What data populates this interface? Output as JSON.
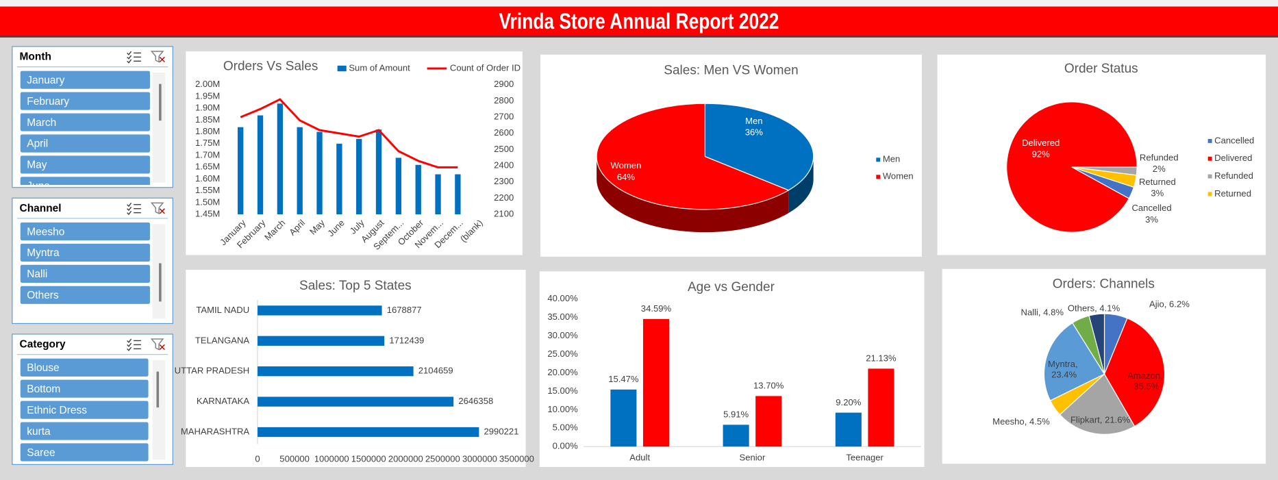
{
  "header": {
    "title": "Vrinda Store Annual Report 2022"
  },
  "slicers": [
    {
      "title": "Month",
      "items": [
        "January",
        "February",
        "March",
        "April",
        "May",
        "June"
      ]
    },
    {
      "title": "Channel",
      "items": [
        "Meesho",
        "Myntra",
        "Nalli",
        "Others"
      ]
    },
    {
      "title": "Category",
      "items": [
        "Blouse",
        "Bottom",
        "Ethnic Dress",
        "kurta",
        "Saree"
      ]
    }
  ],
  "chart_data": [
    {
      "type": "combo",
      "title": "Orders Vs Sales",
      "categories": [
        "January",
        "February",
        "March",
        "April",
        "May",
        "June",
        "July",
        "August",
        "Septem...",
        "October",
        "Novem...",
        "Decem...",
        "(blank)"
      ],
      "series": [
        {
          "name": "Sum of Amount",
          "type": "bar",
          "color": "#0070c0",
          "values": [
            1820000,
            1870000,
            1920000,
            1820000,
            1800000,
            1750000,
            1770000,
            1810000,
            1690000,
            1660000,
            1620000,
            1620000,
            null
          ]
        },
        {
          "name": "Count of Order ID",
          "type": "line",
          "axis": "y2",
          "color": "#ff0000",
          "values": [
            2700,
            2750,
            2810,
            2680,
            2620,
            2600,
            2580,
            2620,
            2490,
            2430,
            2390,
            2390,
            null
          ]
        }
      ],
      "ylim": [
        1450000,
        2000000
      ],
      "yticks": [
        {
          "value": 1450000,
          "label": "1.45M"
        },
        {
          "value": 1500000,
          "label": "1.50M"
        },
        {
          "value": 1550000,
          "label": "1.55M"
        },
        {
          "value": 1600000,
          "label": "1.60M"
        },
        {
          "value": 1650000,
          "label": "1.65M"
        },
        {
          "value": 1700000,
          "label": "1.70M"
        },
        {
          "value": 1750000,
          "label": "1.75M"
        },
        {
          "value": 1800000,
          "label": "1.80M"
        },
        {
          "value": 1850000,
          "label": "1.85M"
        },
        {
          "value": 1900000,
          "label": "1.90M"
        },
        {
          "value": 1950000,
          "label": "1.95M"
        },
        {
          "value": 2000000,
          "label": "2.00M"
        }
      ],
      "y2lim": [
        2100,
        2900
      ],
      "y2ticks": [
        2100,
        2200,
        2300,
        2400,
        2500,
        2600,
        2700,
        2800,
        2900
      ],
      "legend": "top"
    },
    {
      "type": "pie",
      "three_d": true,
      "title": "Sales: Men VS Women",
      "categories": [
        "Men",
        "Women"
      ],
      "values": [
        36,
        64
      ],
      "value_labels": [
        "36%",
        "64%"
      ],
      "colors": [
        "#0070c0",
        "#ff0000"
      ],
      "legend": "right"
    },
    {
      "type": "pie",
      "title": "Order Status",
      "categories": [
        "Cancelled",
        "Delivered",
        "Refunded",
        "Returned"
      ],
      "values": [
        3,
        92,
        2,
        3
      ],
      "value_labels": [
        "3%",
        "92%",
        "2%",
        "3%"
      ],
      "colors": [
        "#4472c4",
        "#ff0000",
        "#a5a5a5",
        "#ffc000"
      ],
      "legend": "right"
    },
    {
      "type": "hbar",
      "title": "Sales: Top 5 States",
      "categories": [
        "TAMIL NADU",
        "TELANGANA",
        "UTTAR PRADESH",
        "KARNATAKA",
        "MAHARASHTRA"
      ],
      "values": [
        1678877,
        1712439,
        2104659,
        2646358,
        2990221
      ],
      "color": "#0070c0",
      "xlim": [
        0,
        3500000
      ],
      "xticks": [
        0,
        500000,
        1000000,
        1500000,
        2000000,
        2500000,
        3000000,
        3500000
      ]
    },
    {
      "type": "bar",
      "title": "Age vs Gender",
      "categories": [
        "Adult",
        "Senior",
        "Teenager"
      ],
      "series": [
        {
          "color": "#0070c0",
          "values": [
            15.47,
            5.91,
            9.2
          ],
          "value_labels": [
            "15.47%",
            "5.91%",
            "9.20%"
          ]
        },
        {
          "color": "#ff0000",
          "values": [
            34.59,
            13.7,
            21.13
          ],
          "value_labels": [
            "34.59%",
            "13.70%",
            "21.13%"
          ]
        }
      ],
      "ylim": [
        0,
        40
      ],
      "yticks": [
        {
          "value": 0,
          "label": "0.00%"
        },
        {
          "value": 5,
          "label": "5.00%"
        },
        {
          "value": 10,
          "label": "10.00%"
        },
        {
          "value": 15,
          "label": "15.00%"
        },
        {
          "value": 20,
          "label": "20.00%"
        },
        {
          "value": 25,
          "label": "25.00%"
        },
        {
          "value": 30,
          "label": "30.00%"
        },
        {
          "value": 35,
          "label": "35.00%"
        },
        {
          "value": 40,
          "label": "40.00%"
        }
      ]
    },
    {
      "type": "pie",
      "title": "Orders: Channels",
      "labels": [
        "Ajio, 6.2%",
        "Amazon, 35.5%",
        "Flipkart, 21.6%",
        "Meesho, 4.5%",
        "Myntra, 23.4%",
        "Nalli, 4.8%",
        "Others, 4.1%"
      ],
      "values": [
        6.2,
        35.5,
        21.6,
        4.5,
        23.4,
        4.8,
        4.1
      ],
      "colors": [
        "#4472c4",
        "#ff0000",
        "#a5a5a5",
        "#ffc000",
        "#5b9bd5",
        "#70ad47",
        "#264478"
      ]
    }
  ]
}
